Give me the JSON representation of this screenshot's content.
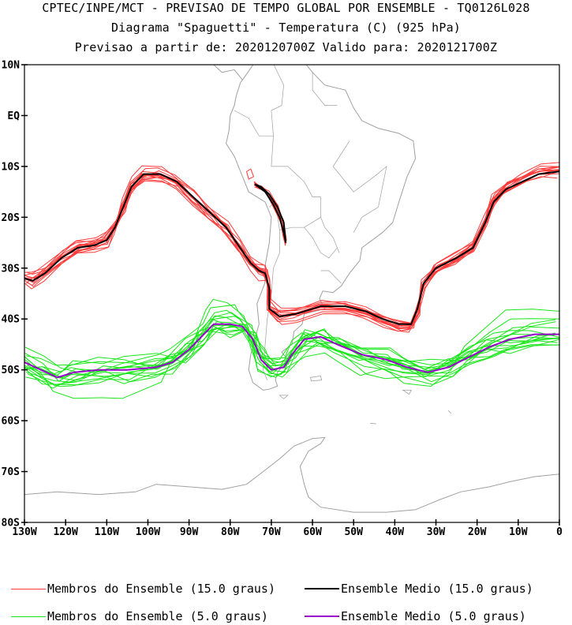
{
  "header": {
    "line1": "CPTEC/INPE/MCT - PREVISAO DE TEMPO GLOBAL POR ENSEMBLE - TQ0126L028",
    "line2": "Diagrama \"Spaguetti\" - Temperatura (C) (925 hPa)",
    "line3": "Previsao a partir de: 2020120700Z  Valido para: 2020121700Z"
  },
  "axes": {
    "lat_labels": [
      "10N",
      "EQ",
      "10S",
      "20S",
      "30S",
      "40S",
      "50S",
      "60S",
      "70S",
      "80S"
    ],
    "lon_labels": [
      "130W",
      "120W",
      "110W",
      "100W",
      "90W",
      "80W",
      "70W",
      "60W",
      "50W",
      "40W",
      "30W",
      "20W",
      "10W",
      "0"
    ],
    "lat_range": [
      -80,
      10
    ],
    "lon_range": [
      -130,
      0
    ]
  },
  "legend": {
    "members_15": "Membros do Ensemble (15.0 graus)",
    "mean_15": "Ensemble Medio (15.0 graus)",
    "members_5": "Membros do Ensemble (5.0 graus)",
    "mean_5": "Ensemble Medio (5.0 graus)"
  },
  "colors": {
    "members_15": "#ff3b3b",
    "mean_15": "#000000",
    "members_5": "#19e619",
    "mean_5": "#9900cc",
    "coast": "#a0a0a0"
  },
  "contours": {
    "mean_15": [
      [
        -130,
        -32
      ],
      [
        -128,
        -32.5
      ],
      [
        -125,
        -31
      ],
      [
        -121,
        -28
      ],
      [
        -117,
        -26
      ],
      [
        -113,
        -25.5
      ],
      [
        -110,
        -24.5
      ],
      [
        -108,
        -22
      ],
      [
        -106,
        -18
      ],
      [
        -104,
        -14
      ],
      [
        -101,
        -11.5
      ],
      [
        -97,
        -11.5
      ],
      [
        -93,
        -13
      ],
      [
        -89,
        -16
      ],
      [
        -85,
        -19
      ],
      [
        -81,
        -22
      ],
      [
        -78,
        -25.5
      ],
      [
        -75,
        -29
      ],
      [
        -73,
        -30.5
      ],
      [
        -71.5,
        -31
      ],
      [
        -70.5,
        -34
      ],
      [
        -70.5,
        -38
      ],
      [
        -68,
        -39.5
      ],
      [
        -64,
        -39
      ],
      [
        -58,
        -37.5
      ],
      [
        -52,
        -37.5
      ],
      [
        -47,
        -38.5
      ],
      [
        -43,
        -40
      ],
      [
        -39,
        -41
      ],
      [
        -36,
        -41
      ],
      [
        -34.5,
        -38
      ],
      [
        -33,
        -33
      ],
      [
        -30,
        -30
      ],
      [
        -25,
        -28
      ],
      [
        -21,
        -26
      ],
      [
        -18,
        -21
      ],
      [
        -16,
        -17
      ],
      [
        -13,
        -14.5
      ],
      [
        -9,
        -13
      ],
      [
        -5,
        -11.5
      ],
      [
        0,
        -11
      ]
    ],
    "mean_15_andes": [
      [
        -74,
        -13.5
      ],
      [
        -71.5,
        -15
      ],
      [
        -69.5,
        -17.5
      ],
      [
        -68,
        -20
      ],
      [
        -67,
        -23
      ],
      [
        -66.5,
        -25
      ],
      [
        -67,
        -21
      ],
      [
        -68.5,
        -18
      ],
      [
        -70.5,
        -15.5
      ],
      [
        -72.5,
        -14
      ],
      [
        -74,
        -13.5
      ]
    ],
    "mean_5": [
      [
        -130,
        -48.5
      ],
      [
        -126,
        -50
      ],
      [
        -122,
        -51.5
      ],
      [
        -118,
        -50.5
      ],
      [
        -112,
        -50
      ],
      [
        -105,
        -50
      ],
      [
        -98,
        -49.5
      ],
      [
        -94,
        -48.5
      ],
      [
        -90,
        -46
      ],
      [
        -87,
        -43.5
      ],
      [
        -84,
        -41
      ],
      [
        -80,
        -41
      ],
      [
        -77,
        -41.5
      ],
      [
        -74.5,
        -44
      ],
      [
        -72.5,
        -48
      ],
      [
        -70,
        -50
      ],
      [
        -67,
        -49.5
      ],
      [
        -65,
        -47
      ],
      [
        -62,
        -44
      ],
      [
        -58,
        -43.5
      ],
      [
        -54,
        -45
      ],
      [
        -48,
        -47
      ],
      [
        -42,
        -48
      ],
      [
        -37,
        -49.5
      ],
      [
        -32,
        -50.5
      ],
      [
        -27,
        -49.5
      ],
      [
        -22,
        -47.5
      ],
      [
        -17,
        -45.5
      ],
      [
        -12,
        -44
      ],
      [
        -6,
        -43
      ],
      [
        0,
        -43
      ]
    ]
  }
}
